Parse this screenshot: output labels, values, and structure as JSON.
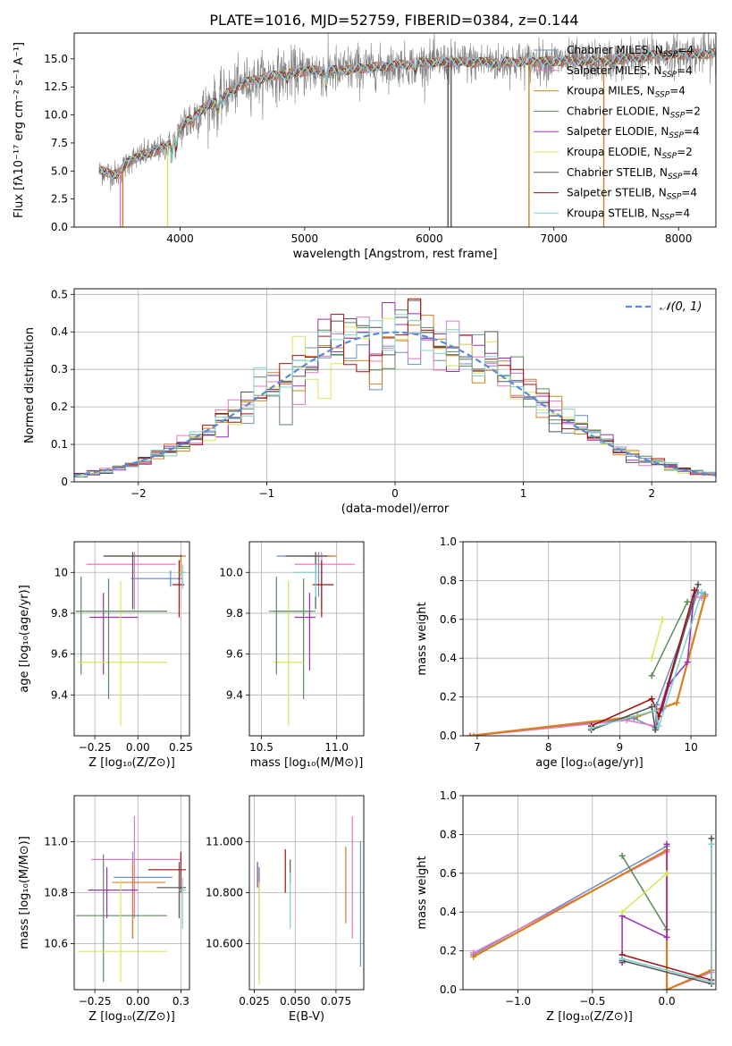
{
  "figure": {
    "title": "PLATE=1016, MJD=52759, FIBERID=0384, z=0.144"
  },
  "colors": {
    "chabrier_miles": "#6c8ebf",
    "salpeter_miles": "#e377c2",
    "kroupa_miles": "#d4801f",
    "chabrier_elodie": "#5a8a5a",
    "salpeter_elodie": "#9b30b0",
    "kroupa_elodie": "#d4e85a",
    "chabrier_stelib": "#555555",
    "salpeter_stelib": "#a01010",
    "kroupa_stelib": "#7ecfcf",
    "normal": "#5b8ad8",
    "grid": "#b0b0b0"
  },
  "chart_data": [
    {
      "type": "line",
      "id": "spectrum",
      "xlabel": "wavelength [Angstrom, rest frame]",
      "ylabel": "Flux [fλ10⁻¹⁷ erg cm⁻² s⁻¹ A⁻¹]",
      "xlim": [
        3150,
        8300
      ],
      "ylim": [
        0,
        17.3
      ],
      "xticks": [
        4000,
        5000,
        6000,
        7000,
        8000
      ],
      "yticks": [
        0.0,
        2.5,
        5.0,
        7.5,
        10.0,
        12.5,
        15.0
      ],
      "grid": false,
      "legend_placement": "top-right",
      "legend": [
        {
          "key": "chabrier_miles",
          "label": "Chabrier MILES, N",
          "sub": "SSP",
          "tail": "=4"
        },
        {
          "key": "salpeter_miles",
          "label": "Salpeter MILES, N",
          "sub": "SSP",
          "tail": "=4"
        },
        {
          "key": "kroupa_miles",
          "label": "Kroupa MILES, N",
          "sub": "SSP",
          "tail": "=4"
        },
        {
          "key": "chabrier_elodie",
          "label": "Chabrier ELODIE, N",
          "sub": "SSP",
          "tail": "=2"
        },
        {
          "key": "salpeter_elodie",
          "label": "Salpeter ELODIE, N",
          "sub": "SSP",
          "tail": "=4"
        },
        {
          "key": "kroupa_elodie",
          "label": "Kroupa ELODIE, N",
          "sub": "SSP",
          "tail": "=2"
        },
        {
          "key": "chabrier_stelib",
          "label": "Chabrier STELIB, N",
          "sub": "SSP",
          "tail": "=4"
        },
        {
          "key": "salpeter_stelib",
          "label": "Salpeter STELIB, N",
          "sub": "SSP",
          "tail": "=4"
        },
        {
          "key": "kroupa_stelib",
          "label": "Kroupa STELIB, N",
          "sub": "SSP",
          "tail": "=4"
        }
      ],
      "continuum_anchors": [
        [
          3350,
          5.0
        ],
        [
          3500,
          4.7
        ],
        [
          3600,
          6.0
        ],
        [
          3750,
          6.6
        ],
        [
          3900,
          7.2
        ],
        [
          4000,
          8.8
        ],
        [
          4150,
          10.3
        ],
        [
          4300,
          11.3
        ],
        [
          4500,
          12.8
        ],
        [
          4700,
          13.4
        ],
        [
          5000,
          13.9
        ],
        [
          5300,
          14.0
        ],
        [
          5600,
          14.3
        ],
        [
          6000,
          14.7
        ],
        [
          6500,
          14.7
        ],
        [
          7000,
          14.8
        ],
        [
          7400,
          14.8
        ],
        [
          7800,
          15.3
        ],
        [
          8300,
          15.5
        ]
      ],
      "model_dropouts": [
        [
          3520,
          "salpeter_miles"
        ],
        [
          3540,
          "kroupa_miles"
        ],
        [
          3900,
          "kroupa_elodie"
        ],
        [
          6800,
          "kroupa_miles"
        ],
        [
          7400,
          "kroupa_miles"
        ],
        [
          6150,
          "chabrier_stelib"
        ],
        [
          6175,
          "chabrier_stelib"
        ]
      ]
    },
    {
      "type": "step",
      "id": "residuals",
      "xlabel": "(data-model)/error",
      "ylabel": "Normed distribution",
      "xlim": [
        -2.5,
        2.5
      ],
      "ylim": [
        0,
        0.515
      ],
      "xticks": [
        -2,
        -1,
        0,
        1,
        2
      ],
      "yticks": [
        0.0,
        0.1,
        0.2,
        0.3,
        0.4,
        0.5
      ],
      "grid": true,
      "legend_placement": "top-right",
      "normal_label": "𝒩(0, 1)",
      "bin_width": 0.1
    },
    {
      "type": "errorbar",
      "id": "age_vs_Z",
      "xlabel": "Z [log₁₀(Z/Z⊙)]",
      "ylabel": "age  [log₁₀(age/yr)]",
      "xlim": [
        -0.37,
        0.3
      ],
      "ylim": [
        9.2,
        10.15
      ],
      "xticks": [
        -0.25,
        0.0,
        0.25
      ],
      "yticks": [
        9.4,
        9.6,
        9.8,
        10.0
      ],
      "grid": true,
      "points": [
        {
          "key": "chabrier_miles",
          "x": 0.19,
          "y": 9.97,
          "xlo": -0.04,
          "xhi": 0.26,
          "ylo": 9.93,
          "yhi": 10.01
        },
        {
          "key": "salpeter_miles",
          "x": -0.02,
          "y": 10.04,
          "xlo": -0.3,
          "xhi": 0.22,
          "ylo": 9.82,
          "yhi": 10.1
        },
        {
          "key": "kroupa_miles",
          "x": 0.25,
          "y": 10.08,
          "xlo": -0.2,
          "xhi": 0.28,
          "ylo": 9.98,
          "yhi": 10.09
        },
        {
          "key": "chabrier_elodie",
          "x": -0.33,
          "y": 9.81,
          "xlo": -0.36,
          "xhi": 0.17,
          "ylo": 9.5,
          "yhi": 9.98
        },
        {
          "key": "salpeter_elodie",
          "x": -0.2,
          "y": 9.78,
          "xlo": -0.28,
          "xhi": 0.0,
          "ylo": 9.5,
          "yhi": 9.9
        },
        {
          "key": "kroupa_elodie",
          "x": -0.1,
          "y": 9.56,
          "xlo": -0.35,
          "xhi": 0.17,
          "ylo": 9.25,
          "yhi": 9.96
        },
        {
          "key": "chabrier_stelib",
          "x": -0.03,
          "y": 10.08,
          "xlo": -0.2,
          "xhi": 0.26,
          "ylo": 9.82,
          "yhi": 10.1
        },
        {
          "key": "salpeter_stelib",
          "x": 0.24,
          "y": 9.94,
          "xlo": 0.2,
          "xhi": 0.27,
          "ylo": 9.78,
          "yhi": 10.06
        },
        {
          "key": "kroupa_stelib",
          "x": 0.26,
          "y": 10.0,
          "xlo": 0.24,
          "xhi": 0.28,
          "ylo": 9.92,
          "yhi": 10.04
        },
        {
          "key": "chabrier_elodie",
          "x": -0.17,
          "y": 9.81,
          "xlo": -0.36,
          "xhi": 0.17,
          "ylo": 9.38,
          "yhi": 9.97
        }
      ]
    },
    {
      "type": "errorbar",
      "id": "age_vs_mass",
      "xlabel": "mass [log₁₀(M/M⊙)]",
      "ylabel": "",
      "xlim": [
        10.42,
        11.18
      ],
      "ylim": [
        9.2,
        10.15
      ],
      "xticks": [
        10.5,
        11.0
      ],
      "yticks": [
        9.4,
        9.6,
        9.8,
        10.0
      ],
      "grid": true,
      "points": [
        {
          "key": "chabrier_miles",
          "x": 10.88,
          "y": 10.08,
          "xlo": 10.6,
          "xhi": 10.98,
          "ylo": 9.88,
          "yhi": 10.1
        },
        {
          "key": "salpeter_miles",
          "x": 10.9,
          "y": 10.04,
          "xlo": 10.72,
          "xhi": 11.12,
          "ylo": 9.82,
          "yhi": 10.1
        },
        {
          "key": "kroupa_miles",
          "x": 10.86,
          "y": 10.08,
          "xlo": 10.78,
          "xhi": 11.0,
          "ylo": 9.98,
          "yhi": 10.09
        },
        {
          "key": "chabrier_elodie",
          "x": 10.78,
          "y": 9.81,
          "xlo": 10.55,
          "xhi": 10.86,
          "ylo": 9.38,
          "yhi": 9.97
        },
        {
          "key": "salpeter_elodie",
          "x": 10.82,
          "y": 9.78,
          "xlo": 10.72,
          "xhi": 10.86,
          "ylo": 9.52,
          "yhi": 9.9
        },
        {
          "key": "kroupa_elodie",
          "x": 10.68,
          "y": 9.56,
          "xlo": 10.58,
          "xhi": 10.78,
          "ylo": 9.25,
          "yhi": 9.96
        },
        {
          "key": "chabrier_stelib",
          "x": 10.86,
          "y": 10.08,
          "xlo": 10.66,
          "xhi": 10.94,
          "ylo": 9.82,
          "yhi": 10.1
        },
        {
          "key": "salpeter_stelib",
          "x": 10.9,
          "y": 9.94,
          "xlo": 10.84,
          "xhi": 10.98,
          "ylo": 9.78,
          "yhi": 10.06
        },
        {
          "key": "kroupa_stelib",
          "x": 10.86,
          "y": 10.0,
          "xlo": 10.72,
          "xhi": 10.88,
          "ylo": 9.88,
          "yhi": 10.04
        },
        {
          "key": "chabrier_elodie",
          "x": 10.6,
          "y": 9.81,
          "xlo": 10.58,
          "xhi": 10.84,
          "ylo": 9.5,
          "yhi": 9.98
        }
      ]
    },
    {
      "type": "line",
      "id": "weight_vs_age",
      "xlabel": "age  [log₁₀(age/yr)]",
      "ylabel": "mass weight",
      "xlim": [
        6.8,
        10.35
      ],
      "ylim": [
        0,
        1.0
      ],
      "xticks": [
        7,
        8,
        9,
        10
      ],
      "yticks": [
        0.0,
        0.2,
        0.4,
        0.6,
        0.8,
        1.0
      ],
      "grid": true,
      "series": [
        {
          "key": "chabrier_miles",
          "x": [
            6.9,
            9.2,
            9.5,
            9.52,
            10.1,
            10.2
          ],
          "y": [
            0.0,
            0.09,
            0.04,
            0.16,
            0.74,
            0.73
          ]
        },
        {
          "key": "salpeter_miles",
          "x": [
            6.95,
            9.1,
            9.5,
            9.55,
            10.05,
            10.15
          ],
          "y": [
            0.0,
            0.08,
            0.05,
            0.12,
            0.72,
            0.71
          ]
        },
        {
          "key": "kroupa_miles",
          "x": [
            6.9,
            9.25,
            9.8,
            10.2
          ],
          "y": [
            0.0,
            0.1,
            0.17,
            0.72
          ]
        },
        {
          "key": "chabrier_elodie",
          "x": [
            9.45,
            9.95
          ],
          "y": [
            0.31,
            0.69
          ]
        },
        {
          "key": "salpeter_elodie",
          "x": [
            9.6,
            9.7,
            9.95,
            10.05
          ],
          "y": [
            0.14,
            0.27,
            0.38,
            0.75
          ]
        },
        {
          "key": "kroupa_elodie",
          "x": [
            9.45,
            9.6
          ],
          "y": [
            0.4,
            0.6
          ]
        },
        {
          "key": "chabrier_stelib",
          "x": [
            8.6,
            9.45,
            9.5,
            10.1
          ],
          "y": [
            0.03,
            0.15,
            0.03,
            0.78
          ]
        },
        {
          "key": "salpeter_stelib",
          "x": [
            8.6,
            9.45,
            9.55,
            10.05
          ],
          "y": [
            0.05,
            0.19,
            0.1,
            0.75
          ]
        },
        {
          "key": "kroupa_stelib",
          "x": [
            8.6,
            9.5,
            9.55,
            10.15
          ],
          "y": [
            0.04,
            0.13,
            0.05,
            0.74
          ]
        }
      ]
    },
    {
      "type": "errorbar",
      "id": "mass_vs_Z",
      "xlabel": "Z [log₁₀(Z/Z⊙)]",
      "ylabel": "mass [log₁₀(M/M⊙)]",
      "xlim": [
        -0.37,
        0.3
      ],
      "ylim": [
        10.42,
        11.18
      ],
      "xticks": [
        -0.25,
        0.0,
        0.25
      ],
      "yticks": [
        10.6,
        10.8,
        11.0
      ],
      "grid": true,
      "points": [
        {
          "key": "chabrier_miles",
          "x": -0.03,
          "y": 10.86,
          "xlo": -0.14,
          "xhi": 0.2,
          "ylo": 10.62,
          "yhi": 10.96
        },
        {
          "key": "salpeter_miles",
          "x": -0.02,
          "y": 10.93,
          "xlo": -0.27,
          "xhi": 0.25,
          "ylo": 10.7,
          "yhi": 11.1
        },
        {
          "key": "kroupa_miles",
          "x": -0.03,
          "y": 10.84,
          "xlo": -0.15,
          "xhi": 0.16,
          "ylo": 10.62,
          "yhi": 10.92
        },
        {
          "key": "chabrier_elodie",
          "x": -0.2,
          "y": 10.71,
          "xlo": -0.36,
          "xhi": 0.17,
          "ylo": 10.45,
          "yhi": 10.95
        },
        {
          "key": "salpeter_elodie",
          "x": -0.18,
          "y": 10.81,
          "xlo": -0.29,
          "xhi": 0.0,
          "ylo": 10.7,
          "yhi": 10.9
        },
        {
          "key": "kroupa_elodie",
          "x": -0.1,
          "y": 10.57,
          "xlo": -0.35,
          "xhi": 0.17,
          "ylo": 10.45,
          "yhi": 10.85
        },
        {
          "key": "chabrier_stelib",
          "x": 0.24,
          "y": 10.82,
          "xlo": 0.11,
          "xhi": 0.28,
          "ylo": 10.7,
          "yhi": 10.92
        },
        {
          "key": "salpeter_stelib",
          "x": 0.25,
          "y": 10.89,
          "xlo": 0.06,
          "xhi": 0.28,
          "ylo": 10.8,
          "yhi": 10.96
        },
        {
          "key": "kroupa_stelib",
          "x": 0.26,
          "y": 10.81,
          "xlo": 0.24,
          "xhi": 0.28,
          "ylo": 10.66,
          "yhi": 10.86
        }
      ]
    },
    {
      "type": "errorbar",
      "id": "mass_vs_ebv",
      "xlabel": "E(B-V)",
      "ylabel": "",
      "xlim": [
        0.022,
        0.092
      ],
      "ylim": [
        10.42,
        11.18
      ],
      "xticks": [
        0.025,
        0.05,
        0.075
      ],
      "yticks": [
        10.6,
        10.8,
        11.0
      ],
      "grid": true,
      "points": [
        {
          "key": "chabrier_miles",
          "x": 0.09,
          "y": 10.82,
          "ylo": 10.51,
          "yhi": 11.0
        },
        {
          "key": "salpeter_miles",
          "x": 0.085,
          "y": 10.93,
          "ylo": 10.62,
          "yhi": 11.1
        },
        {
          "key": "kroupa_miles",
          "x": 0.081,
          "y": 10.84,
          "ylo": 10.68,
          "yhi": 10.98
        },
        {
          "key": "chabrier_elodie",
          "x": 0.028,
          "y": 10.71,
          "ylo": 10.46,
          "yhi": 10.9
        },
        {
          "key": "salpeter_elodie",
          "x": 0.027,
          "y": 10.86,
          "ylo": 10.82,
          "yhi": 10.92
        },
        {
          "key": "kroupa_elodie",
          "x": 0.028,
          "y": 10.57,
          "ylo": 10.44,
          "yhi": 10.84
        },
        {
          "key": "chabrier_stelib",
          "x": 0.047,
          "y": 10.88,
          "ylo": 10.84,
          "yhi": 10.93
        },
        {
          "key": "salpeter_stelib",
          "x": 0.044,
          "y": 10.89,
          "ylo": 10.8,
          "yhi": 10.97
        },
        {
          "key": "kroupa_stelib",
          "x": 0.047,
          "y": 10.8,
          "ylo": 10.66,
          "yhi": 10.88
        }
      ]
    },
    {
      "type": "line",
      "id": "weight_vs_Z",
      "xlabel": "Z [log₁₀(Z/Z⊙)]",
      "ylabel": "mass weight",
      "xlim": [
        -1.37,
        0.33
      ],
      "ylim": [
        0,
        1.0
      ],
      "xticks": [
        -1.0,
        -0.5,
        0.0
      ],
      "yticks": [
        0.0,
        0.2,
        0.4,
        0.6,
        0.8,
        1.0
      ],
      "grid": true,
      "series": [
        {
          "key": "chabrier_miles",
          "x": [
            -1.3,
            0.0,
            0.0,
            0.3
          ],
          "y": [
            0.18,
            0.74,
            0.0,
            0.1
          ]
        },
        {
          "key": "salpeter_miles",
          "x": [
            -1.3,
            0.0,
            0.0,
            0.3
          ],
          "y": [
            0.19,
            0.71,
            0.0,
            0.09
          ]
        },
        {
          "key": "kroupa_miles",
          "x": [
            -1.3,
            0.0,
            0.0,
            0.3
          ],
          "y": [
            0.17,
            0.72,
            0.0,
            0.1
          ]
        },
        {
          "key": "chabrier_elodie",
          "x": [
            -0.3,
            0.0
          ],
          "y": [
            0.69,
            0.31
          ]
        },
        {
          "key": "salpeter_elodie",
          "x": [
            -0.3,
            -0.3,
            0.0,
            0.0
          ],
          "y": [
            0.14,
            0.38,
            0.27,
            0.75
          ]
        },
        {
          "key": "kroupa_elodie",
          "x": [
            -0.3,
            0.0
          ],
          "y": [
            0.4,
            0.6
          ]
        },
        {
          "key": "chabrier_stelib",
          "x": [
            -0.3,
            0.3,
            0.3
          ],
          "y": [
            0.15,
            0.03,
            0.78
          ]
        },
        {
          "key": "salpeter_stelib",
          "x": [
            -0.3,
            0.3
          ],
          "y": [
            0.18,
            0.05
          ]
        },
        {
          "key": "kroupa_stelib",
          "x": [
            -0.3,
            0.3,
            0.3
          ],
          "y": [
            0.16,
            0.04,
            0.75
          ]
        }
      ]
    }
  ]
}
